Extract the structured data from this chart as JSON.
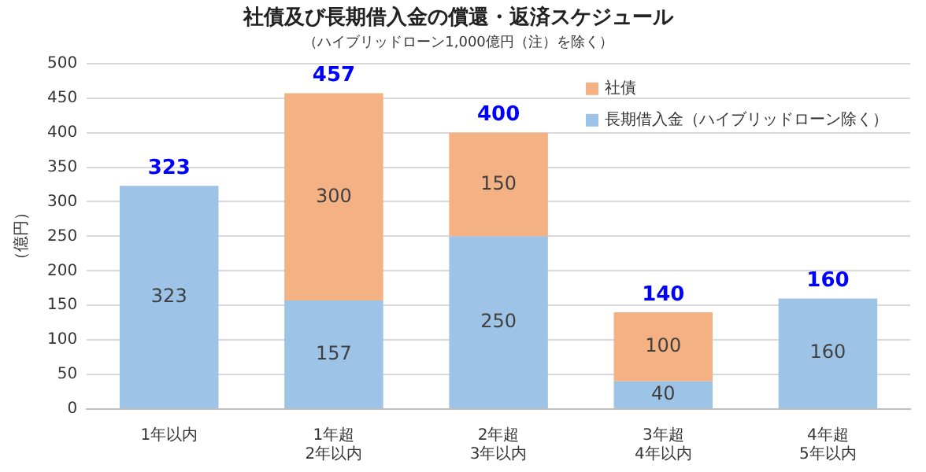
{
  "chart_data": {
    "type": "bar",
    "title": "社債及び長期借入金の償還・返済スケジュール",
    "subtitle": "（ハイブリッドローン1,000億円（注）を除く）",
    "ylabel": "（億円）",
    "categories": [
      "1年以内",
      "1年超\n2年以内",
      "2年超\n3年以内",
      "3年超\n4年以内",
      "4年超\n5年以内"
    ],
    "series": [
      {
        "name": "長期借入金（ハイブリッドローン除く）",
        "color": "#9dc3e6",
        "values": [
          323,
          157,
          250,
          40,
          160
        ]
      },
      {
        "name": "社債",
        "color": "#f4b183",
        "values": [
          null,
          300,
          150,
          100,
          null
        ]
      }
    ],
    "stacked": true,
    "ylim": [
      0,
      500
    ],
    "yticks": [
      0,
      50,
      100,
      150,
      200,
      250,
      300,
      350,
      400,
      450,
      500
    ],
    "grid": "y",
    "legend": "top right",
    "data_labels": true,
    "totals": [
      "323",
      "457",
      "400",
      "140",
      "160"
    ]
  }
}
